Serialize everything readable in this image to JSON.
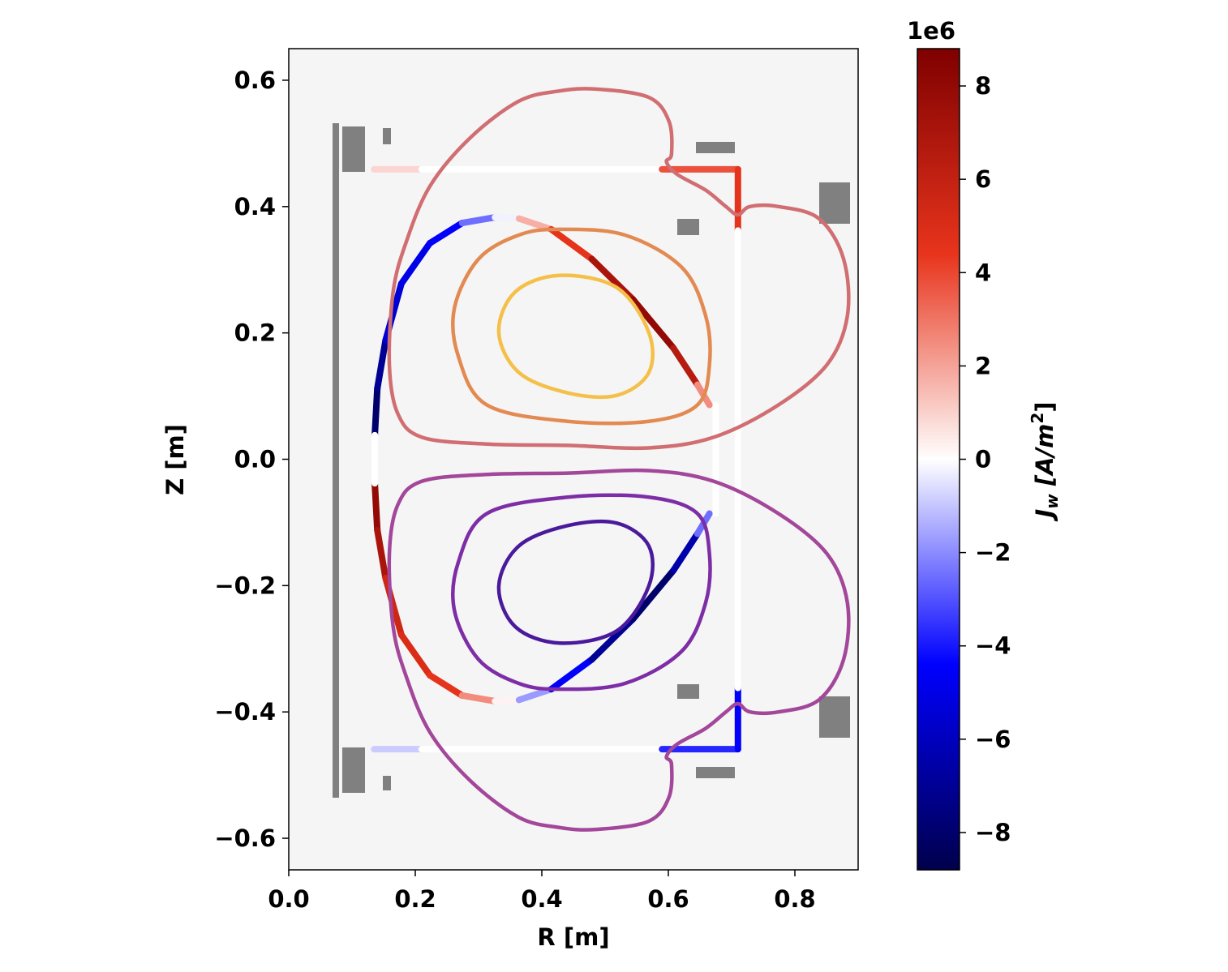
{
  "chart_data": {
    "type": "contour",
    "xlabel": "R [m]",
    "ylabel": "Z [m]",
    "xlim": [
      0,
      0.9
    ],
    "ylim": [
      -0.65,
      0.65
    ],
    "xticks": [
      {
        "value": 0,
        "label": "0.0"
      },
      0.2,
      0.4,
      0.6,
      0.8
    ],
    "yticks": [
      {
        "value": -0.6,
        "label": "−0.6"
      },
      {
        "value": -0.4,
        "label": "−0.4"
      },
      {
        "value": -0.2,
        "label": "−0.2"
      },
      {
        "value": 0,
        "label": "0.0"
      },
      0.2,
      0.4,
      0.6
    ],
    "colorbar": {
      "exponent": "1e6",
      "label": {
        "symbol": "J",
        "subscript": "w",
        "unit": " [A/m",
        "superscript": "2",
        "close": "]"
      },
      "clim": [
        -8.8,
        8.8
      ],
      "ticks": [
        {
          "value": -8,
          "label": "−8"
        },
        {
          "value": -6,
          "label": "−6"
        },
        {
          "value": -4,
          "label": "−4"
        },
        {
          "value": -2,
          "label": "−2"
        },
        0,
        2,
        4,
        6,
        8
      ],
      "colormap": [
        "#00004c",
        "#0000ff",
        "#ffffff",
        "#e8341c",
        "#7f0000"
      ]
    },
    "series": [
      {
        "color": "#d06e72",
        "x": [
          0.486,
          0.569,
          0.601,
          0.605,
          0.597,
          0.614,
          0.659,
          0.691,
          0.71,
          0.729,
          0.774,
          0.838,
          0.877,
          0.883,
          0.851,
          0.774,
          0.672,
          0.569,
          0.441,
          0.313,
          0.21,
          0.172,
          0.159,
          0.165,
          0.185,
          0.223,
          0.287,
          0.364,
          0.428
        ],
        "y": [
          0.586,
          0.573,
          0.535,
          0.483,
          0.471,
          0.451,
          0.426,
          0.4,
          0.387,
          0.4,
          0.4,
          0.381,
          0.317,
          0.227,
          0.15,
          0.086,
          0.035,
          0.018,
          0.022,
          0.024,
          0.035,
          0.073,
          0.15,
          0.265,
          0.342,
          0.432,
          0.509,
          0.567,
          0.583
        ]
      },
      {
        "color": "#e38a52",
        "x": [
          0.428,
          0.531,
          0.621,
          0.659,
          0.665,
          0.646,
          0.569,
          0.441,
          0.313,
          0.268,
          0.262,
          0.3,
          0.364
        ],
        "y": [
          0.364,
          0.355,
          0.304,
          0.227,
          0.15,
          0.086,
          0.06,
          0.06,
          0.086,
          0.163,
          0.24,
          0.317,
          0.355
        ]
      },
      {
        "color": "#f4c04a",
        "x": [
          0.428,
          0.518,
          0.569,
          0.569,
          0.518,
          0.441,
          0.364,
          0.332,
          0.358
        ],
        "y": [
          0.291,
          0.272,
          0.201,
          0.137,
          0.101,
          0.105,
          0.137,
          0.201,
          0.265
        ]
      },
      {
        "color": "#a3479a",
        "x": [
          0.486,
          0.569,
          0.601,
          0.605,
          0.597,
          0.614,
          0.659,
          0.691,
          0.71,
          0.729,
          0.774,
          0.838,
          0.877,
          0.883,
          0.851,
          0.774,
          0.672,
          0.569,
          0.441,
          0.313,
          0.21,
          0.172,
          0.159,
          0.165,
          0.185,
          0.223,
          0.287,
          0.364,
          0.428
        ],
        "y": [
          -0.586,
          -0.573,
          -0.535,
          -0.483,
          -0.471,
          -0.451,
          -0.426,
          -0.4,
          -0.387,
          -0.4,
          -0.4,
          -0.381,
          -0.317,
          -0.227,
          -0.15,
          -0.086,
          -0.035,
          -0.018,
          -0.022,
          -0.024,
          -0.035,
          -0.073,
          -0.15,
          -0.265,
          -0.342,
          -0.432,
          -0.509,
          -0.567,
          -0.583
        ]
      },
      {
        "color": "#7d2ea6",
        "x": [
          0.428,
          0.531,
          0.621,
          0.659,
          0.665,
          0.646,
          0.569,
          0.441,
          0.313,
          0.268,
          0.262,
          0.3,
          0.364
        ],
        "y": [
          -0.364,
          -0.355,
          -0.304,
          -0.227,
          -0.15,
          -0.086,
          -0.06,
          -0.06,
          -0.086,
          -0.163,
          -0.24,
          -0.317,
          -0.355
        ]
      },
      {
        "color": "#4b1a9c",
        "x": [
          0.428,
          0.518,
          0.569,
          0.569,
          0.518,
          0.441,
          0.364,
          0.332,
          0.358
        ],
        "y": [
          -0.291,
          -0.272,
          -0.201,
          -0.137,
          -0.101,
          -0.105,
          -0.137,
          -0.201,
          -0.265
        ]
      }
    ],
    "wall": [
      {
        "x": [
          0.136,
          0.14,
          0.153,
          0.178,
          0.223,
          0.274,
          0.326,
          0.364,
          0.415,
          0.479,
          0.544,
          0.608,
          0.646,
          0.665
        ],
        "y": [
          0.038,
          0.112,
          0.188,
          0.278,
          0.342,
          0.374,
          0.383,
          0.381,
          0.364,
          0.317,
          0.253,
          0.176,
          0.118,
          0.086
        ],
        "j": [
          -8,
          -8,
          -6,
          -5,
          -5,
          -4,
          -1,
          0.5,
          3,
          6,
          8,
          8,
          5,
          0
        ]
      },
      {
        "x": [
          0.136,
          0.14,
          0.153,
          0.178,
          0.223,
          0.274,
          0.326,
          0.364,
          0.415,
          0.479,
          0.544,
          0.608,
          0.646,
          0.665
        ],
        "y": [
          -0.038,
          -0.112,
          -0.188,
          -0.278,
          -0.342,
          -0.374,
          -0.383,
          -0.381,
          -0.364,
          -0.317,
          -0.253,
          -0.176,
          -0.118,
          -0.086
        ],
        "j": [
          8,
          8,
          6,
          5,
          5,
          4,
          1,
          -0.5,
          -3,
          -6,
          -8,
          -8,
          -5,
          0
        ]
      },
      {
        "x": [
          0.136,
          0.136
        ],
        "y": [
          0.038,
          -0.038
        ],
        "j": [
          0,
          0
        ]
      },
      {
        "x": [
          0.135,
          0.21
        ],
        "y": [
          0.459,
          0.459
        ],
        "j": [
          1.5,
          0.3
        ]
      },
      {
        "x": [
          0.21,
          0.59
        ],
        "y": [
          0.459,
          0.459
        ],
        "j": [
          0,
          0
        ]
      },
      {
        "x": [
          0.59,
          0.71,
          0.71
        ],
        "y": [
          0.459,
          0.459,
          0.362
        ],
        "j": [
          3,
          4.5,
          4.5
        ]
      },
      {
        "x": [
          0.135,
          0.21
        ],
        "y": [
          -0.459,
          -0.459
        ],
        "j": [
          -1.5,
          -0.3
        ]
      },
      {
        "x": [
          0.21,
          0.59
        ],
        "y": [
          -0.459,
          -0.459
        ],
        "j": [
          0,
          0
        ]
      },
      {
        "x": [
          0.59,
          0.71,
          0.71
        ],
        "y": [
          -0.459,
          -0.459,
          -0.362
        ],
        "j": [
          -3,
          -4.5,
          -4.5
        ]
      },
      {
        "x": [
          0.71,
          0.71
        ],
        "y": [
          0.362,
          -0.362
        ],
        "j": [
          0,
          0
        ]
      },
      {
        "x": [
          0.675,
          0.675
        ],
        "y": [
          0.086,
          -0.086
        ],
        "j": [
          0,
          0
        ]
      }
    ]
  }
}
